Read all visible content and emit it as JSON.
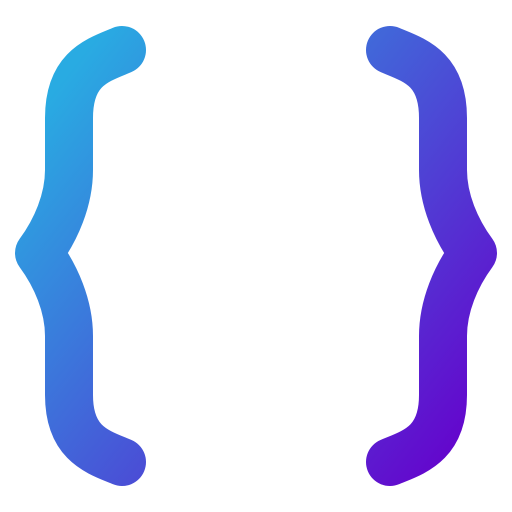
{
  "icon": {
    "name": "curly-braces-icon",
    "gradient": {
      "start_color": "#29abe2",
      "end_color": "#6600cc"
    },
    "background_color": "#ffffff"
  }
}
